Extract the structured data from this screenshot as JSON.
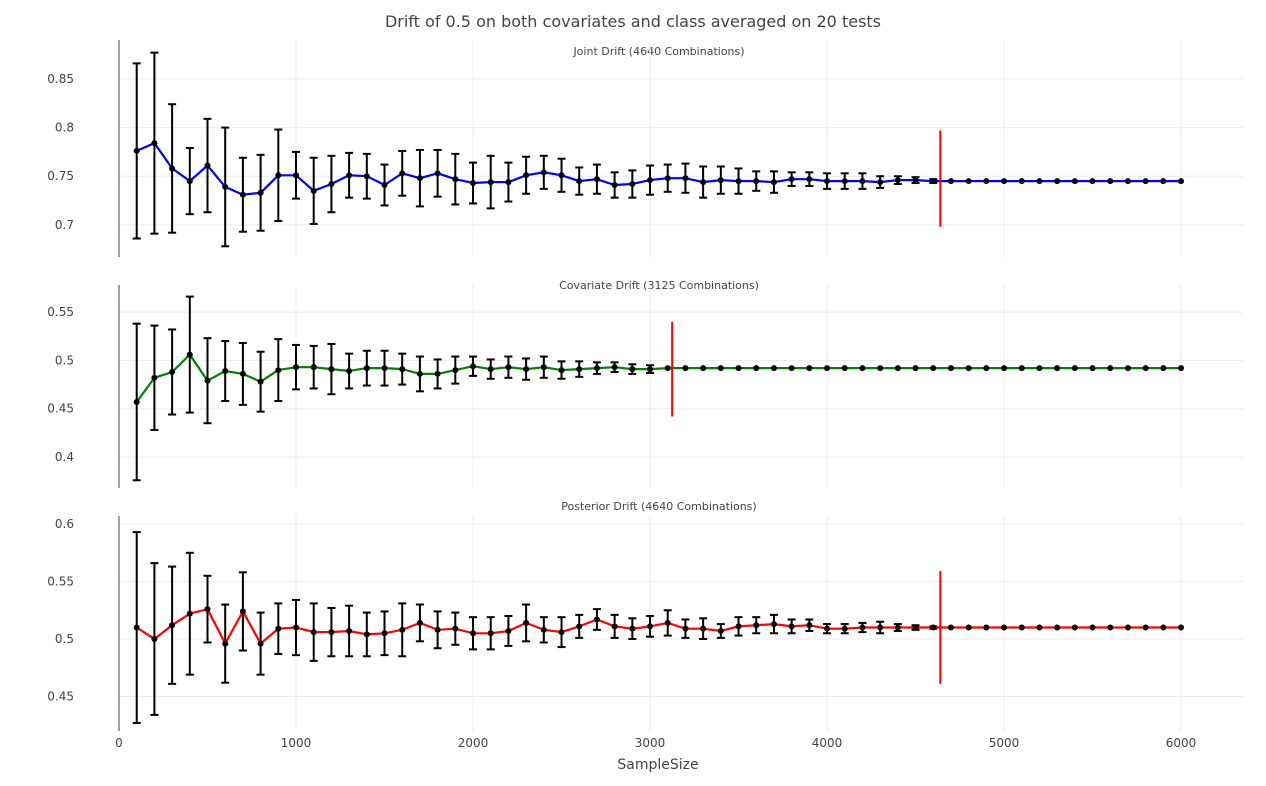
{
  "chart_data": {
    "type": "line",
    "title": "Drift of 0.5 on both covariates and class averaged on 20 tests",
    "xlabel": "SampleSize",
    "xlim": [
      0,
      6350
    ],
    "x_ticks": [
      0,
      1000,
      2000,
      3000,
      4000,
      5000,
      6000
    ],
    "x_tick_labels": [
      "0",
      "1000",
      "2000",
      "3000",
      "4000",
      "5000",
      "6000"
    ],
    "grid": true,
    "x": [
      100,
      200,
      300,
      400,
      500,
      600,
      700,
      800,
      900,
      1000,
      1100,
      1200,
      1300,
      1400,
      1500,
      1600,
      1700,
      1800,
      1900,
      2000,
      2100,
      2200,
      2300,
      2400,
      2500,
      2600,
      2700,
      2800,
      2900,
      3000,
      3100,
      3200,
      3300,
      3400,
      3500,
      3600,
      3700,
      3800,
      3900,
      4000,
      4100,
      4200,
      4300,
      4400,
      4500,
      4600,
      4700,
      4800,
      4900,
      5000,
      5100,
      5200,
      5300,
      5400,
      5500,
      5600,
      5700,
      5800,
      5900,
      6000
    ],
    "panels": [
      {
        "subtitle": "Joint Drift (4640 Combinations)",
        "line_color": "#0000ff",
        "ylim": [
          0.667,
          0.89
        ],
        "y_ticks": [
          0.7,
          0.75,
          0.8,
          0.85
        ],
        "y_tick_labels": [
          "0.7",
          "0.75",
          "0.8",
          "0.85"
        ],
        "vline_x": 4640,
        "vline_range": [
          0.698,
          0.797
        ],
        "values": [
          0.776,
          0.784,
          0.758,
          0.745,
          0.761,
          0.739,
          0.731,
          0.733,
          0.751,
          0.751,
          0.735,
          0.742,
          0.751,
          0.75,
          0.741,
          0.753,
          0.748,
          0.753,
          0.747,
          0.743,
          0.744,
          0.744,
          0.751,
          0.754,
          0.751,
          0.745,
          0.747,
          0.741,
          0.742,
          0.746,
          0.748,
          0.748,
          0.744,
          0.746,
          0.745,
          0.745,
          0.744,
          0.747,
          0.747,
          0.745,
          0.745,
          0.745,
          0.744,
          0.746,
          0.746,
          0.745,
          0.745,
          0.745,
          0.745,
          0.745,
          0.745,
          0.745,
          0.745,
          0.745,
          0.745,
          0.745,
          0.745,
          0.745,
          0.745,
          0.745
        ],
        "errors": [
          0.09,
          0.093,
          0.066,
          0.034,
          0.048,
          0.061,
          0.038,
          0.039,
          0.047,
          0.024,
          0.034,
          0.029,
          0.023,
          0.023,
          0.021,
          0.023,
          0.029,
          0.024,
          0.026,
          0.021,
          0.027,
          0.02,
          0.019,
          0.017,
          0.017,
          0.014,
          0.015,
          0.013,
          0.014,
          0.015,
          0.014,
          0.015,
          0.016,
          0.014,
          0.013,
          0.01,
          0.011,
          0.007,
          0.007,
          0.008,
          0.008,
          0.008,
          0.006,
          0.004,
          0.003,
          0.002,
          0,
          0,
          0,
          0,
          0,
          0,
          0,
          0,
          0,
          0,
          0,
          0,
          0,
          0
        ]
      },
      {
        "subtitle": "Covariate Drift (3125 Combinations)",
        "line_color": "#008000",
        "ylim": [
          0.368,
          0.578
        ],
        "y_ticks": [
          0.4,
          0.45,
          0.5,
          0.55
        ],
        "y_tick_labels": [
          "0.4",
          "0.45",
          "0.5",
          "0.55"
        ],
        "vline_x": 3125,
        "vline_range": [
          0.442,
          0.54
        ],
        "values": [
          0.457,
          0.482,
          0.488,
          0.506,
          0.479,
          0.489,
          0.486,
          0.478,
          0.49,
          0.493,
          0.493,
          0.491,
          0.489,
          0.492,
          0.492,
          0.491,
          0.486,
          0.486,
          0.49,
          0.494,
          0.491,
          0.493,
          0.491,
          0.493,
          0.49,
          0.491,
          0.492,
          0.493,
          0.491,
          0.491,
          0.492,
          0.492,
          0.492,
          0.492,
          0.492,
          0.492,
          0.492,
          0.492,
          0.492,
          0.492,
          0.492,
          0.492,
          0.492,
          0.492,
          0.492,
          0.492,
          0.492,
          0.492,
          0.492,
          0.492,
          0.492,
          0.492,
          0.492,
          0.492,
          0.492,
          0.492,
          0.492,
          0.492,
          0.492,
          0.492
        ],
        "errors": [
          0.081,
          0.054,
          0.044,
          0.06,
          0.044,
          0.031,
          0.032,
          0.031,
          0.032,
          0.023,
          0.022,
          0.026,
          0.018,
          0.018,
          0.018,
          0.016,
          0.018,
          0.015,
          0.014,
          0.01,
          0.01,
          0.011,
          0.011,
          0.011,
          0.009,
          0.008,
          0.006,
          0.005,
          0.005,
          0.004,
          0,
          0,
          0,
          0,
          0,
          0,
          0,
          0,
          0,
          0,
          0,
          0,
          0,
          0,
          0,
          0,
          0,
          0,
          0,
          0,
          0,
          0,
          0,
          0,
          0,
          0,
          0,
          0,
          0,
          0
        ]
      },
      {
        "subtitle": "Posterior Drift (4640 Combinations)",
        "line_color": "#ff0000",
        "ylim": [
          0.42,
          0.607
        ],
        "y_ticks": [
          0.45,
          0.5,
          0.55,
          0.6
        ],
        "y_tick_labels": [
          "0.45",
          "0.5",
          "0.55",
          "0.6"
        ],
        "vline_x": 4640,
        "vline_range": [
          0.461,
          0.559
        ],
        "values": [
          0.51,
          0.5,
          0.512,
          0.522,
          0.526,
          0.496,
          0.524,
          0.496,
          0.509,
          0.51,
          0.506,
          0.506,
          0.507,
          0.504,
          0.505,
          0.508,
          0.514,
          0.508,
          0.509,
          0.505,
          0.505,
          0.507,
          0.514,
          0.508,
          0.506,
          0.511,
          0.517,
          0.511,
          0.509,
          0.511,
          0.514,
          0.509,
          0.509,
          0.507,
          0.511,
          0.512,
          0.513,
          0.511,
          0.512,
          0.509,
          0.509,
          0.51,
          0.51,
          0.51,
          0.51,
          0.51,
          0.51,
          0.51,
          0.51,
          0.51,
          0.51,
          0.51,
          0.51,
          0.51,
          0.51,
          0.51,
          0.51,
          0.51,
          0.51,
          0.51
        ],
        "errors": [
          0.083,
          0.066,
          0.051,
          0.053,
          0.029,
          0.034,
          0.034,
          0.027,
          0.022,
          0.024,
          0.025,
          0.021,
          0.022,
          0.019,
          0.019,
          0.023,
          0.016,
          0.016,
          0.014,
          0.014,
          0.014,
          0.013,
          0.016,
          0.011,
          0.013,
          0.01,
          0.009,
          0.01,
          0.009,
          0.009,
          0.011,
          0.008,
          0.009,
          0.006,
          0.008,
          0.007,
          0.008,
          0.006,
          0.005,
          0.004,
          0.004,
          0.004,
          0.005,
          0.003,
          0.002,
          0.001,
          0,
          0,
          0,
          0,
          0,
          0,
          0,
          0,
          0,
          0,
          0,
          0,
          0,
          0
        ]
      }
    ]
  }
}
